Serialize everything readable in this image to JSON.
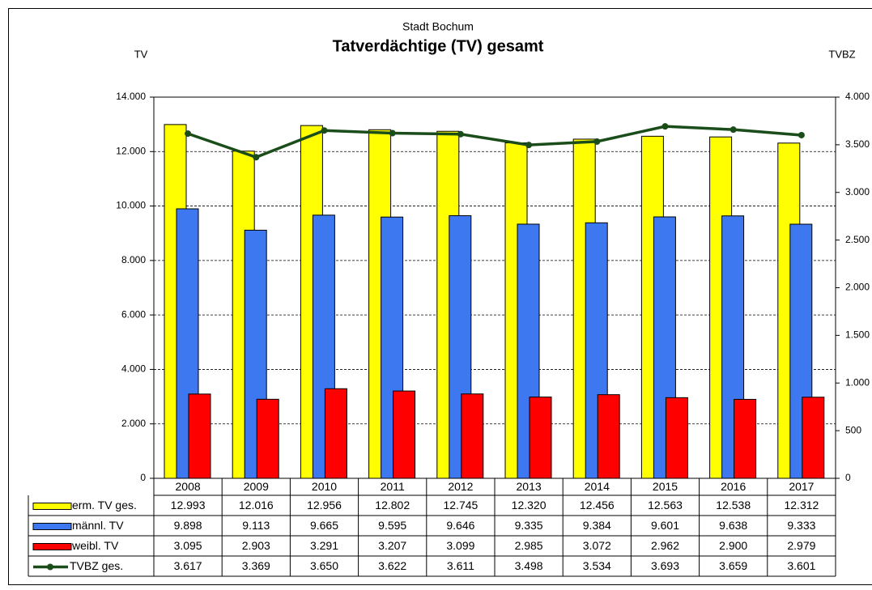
{
  "chart_data": {
    "type": "bar",
    "subtitle": "Stadt Bochum",
    "title": "Tatverdächtige (TV) gesamt",
    "y_label": "TV",
    "y2_label": "TVBZ",
    "categories": [
      "2008",
      "2009",
      "2010",
      "2011",
      "2012",
      "2013",
      "2014",
      "2015",
      "2016",
      "2017"
    ],
    "series": [
      {
        "name": "erm. TV ges.",
        "color": "#ffff00",
        "values": [
          12993,
          12016,
          12956,
          12802,
          12745,
          12320,
          12456,
          12563,
          12538,
          12312
        ],
        "value_labels": [
          "12.993",
          "12.016",
          "12.956",
          "12.802",
          "12.745",
          "12.320",
          "12.456",
          "12.563",
          "12.538",
          "12.312"
        ]
      },
      {
        "name": "männl. TV",
        "color": "#3d78f0",
        "values": [
          9898,
          9113,
          9665,
          9595,
          9646,
          9335,
          9384,
          9601,
          9638,
          9333
        ],
        "value_labels": [
          "9.898",
          "9.113",
          "9.665",
          "9.595",
          "9.646",
          "9.335",
          "9.384",
          "9.601",
          "9.638",
          "9.333"
        ]
      },
      {
        "name": "weibl. TV",
        "color": "#ff0000",
        "values": [
          3095,
          2903,
          3291,
          3207,
          3099,
          2985,
          3072,
          2962,
          2900,
          2979
        ],
        "value_labels": [
          "3.095",
          "2.903",
          "3.291",
          "3.207",
          "3.099",
          "2.985",
          "3.072",
          "2.962",
          "2.900",
          "2.979"
        ]
      },
      {
        "name": "TVBZ ges.",
        "color": "#1a4d1a",
        "type": "line",
        "axis": "y2",
        "values": [
          3617,
          3369,
          3650,
          3622,
          3611,
          3498,
          3534,
          3693,
          3659,
          3601
        ],
        "value_labels": [
          "3.617",
          "3.369",
          "3.650",
          "3.622",
          "3.611",
          "3.498",
          "3.534",
          "3.693",
          "3.659",
          "3.601"
        ]
      }
    ],
    "ylim": [
      0,
      14000
    ],
    "yticks": [
      0,
      {
        "value": 2000,
        "label": "2.000"
      },
      {
        "value": 4000,
        "label": "4.000"
      },
      {
        "value": 6000,
        "label": "6.000"
      },
      {
        "value": 8000,
        "label": "8.000"
      },
      {
        "value": 10000,
        "label": "10.000"
      },
      {
        "value": 12000,
        "label": "12.000"
      },
      {
        "value": 14000,
        "label": "14.000"
      }
    ],
    "y2lim": [
      0,
      4000
    ],
    "y2ticks": [
      0,
      500,
      {
        "value": 1000,
        "label": "1.000"
      },
      {
        "value": 1500,
        "label": "1.500"
      },
      {
        "value": 2000,
        "label": "2.000"
      },
      {
        "value": 2500,
        "label": "2.500"
      },
      {
        "value": 3000,
        "label": "3.000"
      },
      {
        "value": 3500,
        "label": "3.500"
      },
      {
        "value": 4000,
        "label": "4.000"
      }
    ],
    "grid": true
  }
}
